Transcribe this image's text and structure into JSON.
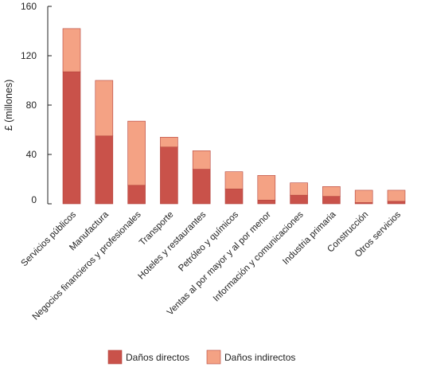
{
  "chart_data": {
    "type": "bar",
    "stacked": true,
    "ylabel": "£ (millones)",
    "ylim": [
      0,
      160
    ],
    "yticks": [
      0,
      40,
      80,
      120,
      160
    ],
    "categories": [
      "Servicios públicos",
      "Manufactura",
      "Negocios financieros y profesionales",
      "Transporte",
      "Hoteles y restaurantes",
      "Petróleo y químicos",
      "Ventas al por mayor y al por menor",
      "Información y comunicaciones",
      "Industria primaria",
      "Construcción",
      "Otros servicios"
    ],
    "series": [
      {
        "name": "Daños directos",
        "color": "#c9524a",
        "values": [
          107,
          55,
          15,
          46,
          28,
          12,
          3,
          7,
          6,
          1,
          2
        ]
      },
      {
        "name": "Daños indirectos",
        "color": "#f4a284",
        "values": [
          35,
          45,
          52,
          8,
          15,
          14,
          20,
          10,
          8,
          10,
          9
        ]
      }
    ],
    "grid": false,
    "legend": "bottom"
  }
}
